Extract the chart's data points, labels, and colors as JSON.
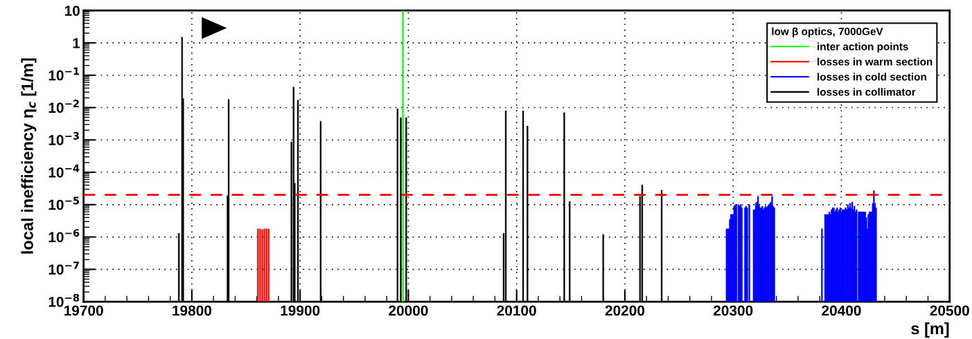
{
  "chart_data": {
    "type": "bar",
    "xlabel": "s [m]",
    "ylabel": "local inefficiency η$_{c}$ [1/m]",
    "legend_title": "low β optics, 7000GeV",
    "legend": "top right",
    "grid": true,
    "log": "y",
    "xlim": [
      19700,
      20500
    ],
    "xticks": [
      19700,
      19800,
      19900,
      20000,
      20100,
      20200,
      20300,
      20400,
      20500
    ],
    "ylim": [
      1e-08,
      10
    ],
    "yticks": [
      {
        "value": 1e-08,
        "label": "10$^{−8}$"
      },
      {
        "value": 1e-07,
        "label": "10$^{−7}$"
      },
      {
        "value": 1e-06,
        "label": "10$^{−6}$"
      },
      {
        "value": 1e-05,
        "label": "10$^{−5}$"
      },
      {
        "value": 0.0001,
        "label": "10$^{−4}$"
      },
      {
        "value": 0.001,
        "label": "10$^{−3}$"
      },
      {
        "value": 0.01,
        "label": "10$^{−2}$"
      },
      {
        "value": 0.1,
        "label": "10$^{−1}$"
      },
      1,
      10
    ],
    "ref_lines": [
      {
        "axis": "y",
        "value": 2e-05,
        "color": "#ff0000",
        "line_style": "dashed"
      }
    ],
    "series": [
      {
        "name": "inter action points",
        "color": "#00ff00",
        "x": [
          19995
        ],
        "values": [
          10
        ]
      },
      {
        "name": "losses in warm section",
        "color": "#ff0000",
        "x": [
          19861,
          19863,
          19865,
          19867,
          19869,
          19871
        ],
        "values": [
          1.8e-06,
          1.8e-06,
          1.7e-06,
          1.8e-06,
          1.8e-06,
          1.8e-06
        ]
      },
      {
        "name": "losses in cold section",
        "color": "#0000ff",
        "x": [
          20294,
          20295,
          20296,
          20297,
          20298,
          20299,
          20300,
          20301,
          20302,
          20303,
          20305,
          20306,
          20307,
          20308,
          20311,
          20312,
          20313,
          20315,
          20319,
          20320,
          20321,
          20322,
          20323,
          20324,
          20325,
          20326,
          20327,
          20328,
          20329,
          20330,
          20331,
          20332,
          20333,
          20334,
          20335,
          20336,
          20337,
          20338,
          20382,
          20385,
          20386,
          20387,
          20388,
          20389,
          20390,
          20391,
          20392,
          20393,
          20394,
          20395,
          20396,
          20397,
          20398,
          20399,
          20400,
          20401,
          20402,
          20403,
          20404,
          20405,
          20406,
          20407,
          20408,
          20409,
          20410,
          20411,
          20412,
          20413,
          20414,
          20416,
          20417,
          20418,
          20419,
          20420,
          20421,
          20422,
          20423,
          20424,
          20425,
          20426,
          20427,
          20428,
          20429,
          20430,
          20431,
          20432
        ],
        "values": [
          1.8e-06,
          1.8e-06,
          1.8e-06,
          3.5e-06,
          5e-06,
          5e-06,
          5e-06,
          9e-06,
          1e-05,
          1e-05,
          1e-05,
          9e-06,
          1e-05,
          8e-06,
          8e-06,
          9e-06,
          8e-06,
          1e-05,
          7e-06,
          7e-06,
          1.1e-05,
          1.2e-05,
          1.8e-05,
          1e-05,
          8e-06,
          8e-06,
          9e-06,
          7e-06,
          8e-06,
          9e-06,
          8e-06,
          9e-06,
          1e-05,
          1.1e-05,
          1.2e-05,
          1.8e-05,
          9e-06,
          8e-06,
          1.8e-06,
          5e-06,
          5e-06,
          5e-06,
          5e-06,
          6e-06,
          5e-06,
          7e-06,
          8e-06,
          8e-06,
          6e-06,
          7e-06,
          8e-06,
          6e-06,
          7e-06,
          8e-06,
          6e-06,
          7e-06,
          7e-06,
          7e-06,
          8e-06,
          7e-06,
          1e-05,
          8e-06,
          1.1e-05,
          8e-06,
          1.2e-05,
          7e-06,
          9e-06,
          6e-06,
          7e-06,
          6e-06,
          6e-06,
          6e-06,
          6e-06,
          6e-06,
          6e-06,
          6e-06,
          4e-06,
          1.8e-06,
          5e-06,
          6e-06,
          6e-06,
          6e-06,
          1.1e-05,
          2.7e-05,
          1.1e-05,
          8e-06
        ]
      },
      {
        "name": "losses in collimator",
        "color": "#000000",
        "x": [
          19788,
          19791,
          19792,
          19833,
          19834,
          19892,
          19894,
          19895,
          19898,
          19919,
          19990,
          19993,
          19998,
          20088,
          20090,
          20106,
          20110,
          20144,
          20149,
          20180,
          20214,
          20216,
          20234
        ],
        "values": [
          1.3e-06,
          1.5,
          0.019,
          1.9e-05,
          0.018,
          0.00087,
          0.043,
          4.6e-05,
          0.017,
          0.0038,
          0.0093,
          0.0049,
          0.0049,
          1.3e-06,
          0.008,
          0.008,
          0.0027,
          0.007,
          1.26e-05,
          1.2e-06,
          1.8e-05,
          4.1e-05,
          2.8e-05
        ]
      }
    ]
  }
}
